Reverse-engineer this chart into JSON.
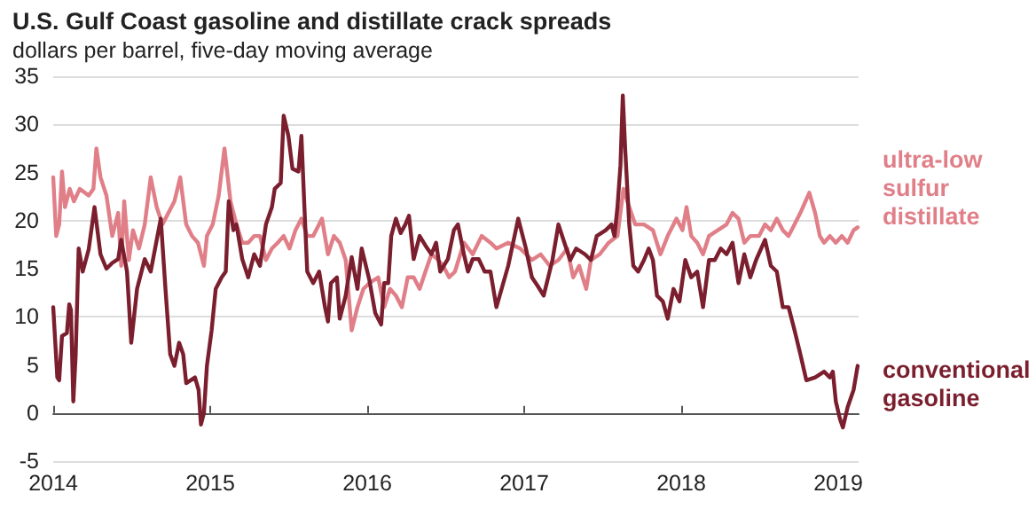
{
  "chart_data": {
    "type": "line",
    "title": "U.S. Gulf Coast gasoline and distillate crack spreads",
    "subtitle": "dollars per barrel, five-day moving average",
    "xlim": [
      2014,
      2019.13
    ],
    "xticks": [
      2014,
      2015,
      2016,
      2017,
      2018,
      2019
    ],
    "ylim": [
      -5,
      35
    ],
    "yticks": [
      -5,
      0,
      5,
      10,
      15,
      20,
      25,
      30,
      35
    ],
    "grid": "y",
    "legend": false,
    "line_style": "solid",
    "series": [
      {
        "name": "ultra-low sulfur distillate",
        "color": "#e07f88",
        "x": [
          2014.0,
          2014.019,
          2014.038,
          2014.056,
          2014.075,
          2014.105,
          2014.132,
          2014.169,
          2014.226,
          2014.256,
          2014.275,
          2014.301,
          2014.339,
          2014.376,
          2014.414,
          2014.433,
          2014.452,
          2014.482,
          2014.508,
          2014.546,
          2014.583,
          2014.621,
          2014.659,
          2014.696,
          2014.734,
          2014.772,
          2014.809,
          2014.847,
          2014.884,
          2014.922,
          2014.96,
          2014.979,
          2015.016,
          2015.054,
          2015.091,
          2015.129,
          2015.167,
          2015.204,
          2015.242,
          2015.28,
          2015.317,
          2015.355,
          2015.393,
          2015.43,
          2015.468,
          2015.505,
          2015.543,
          2015.581,
          2015.618,
          2015.656,
          2015.712,
          2015.75,
          2015.788,
          2015.825,
          2015.863,
          2015.901,
          2015.938,
          2015.976,
          2016.014,
          2016.07,
          2016.108,
          2016.145,
          2016.183,
          2016.221,
          2016.258,
          2016.296,
          2016.334,
          2016.371,
          2016.409,
          2016.446,
          2016.484,
          2016.522,
          2016.559,
          2016.616,
          2016.672,
          2016.729,
          2016.785,
          2016.823,
          2016.898,
          2016.974,
          2017.049,
          2017.105,
          2017.162,
          2017.218,
          2017.274,
          2017.312,
          2017.35,
          2017.395,
          2017.425,
          2017.481,
          2017.538,
          2017.594,
          2017.632,
          2017.669,
          2017.707,
          2017.763,
          2017.82,
          2017.868,
          2017.914,
          2017.97,
          2018.008,
          2018.034,
          2018.064,
          2018.102,
          2018.139,
          2018.177,
          2018.233,
          2018.289,
          2018.327,
          2018.365,
          2018.402,
          2018.44,
          2018.496,
          2018.534,
          2018.571,
          2018.609,
          2018.647,
          2018.684,
          2018.722,
          2018.759,
          2018.816,
          2018.853,
          2018.883,
          2018.91,
          2018.947,
          2018.985,
          2019.023,
          2019.06,
          2019.098,
          2019.124
        ],
        "values": [
          24.5,
          18.4,
          19.6,
          25.1,
          21.4,
          23.3,
          22,
          23.3,
          22.6,
          23.3,
          27.5,
          24.5,
          22.6,
          18.4,
          20.8,
          15.3,
          22,
          15.9,
          19,
          17.1,
          19.6,
          24.5,
          21.4,
          19.6,
          20.8,
          22,
          24.5,
          19.6,
          18.4,
          17.7,
          15.3,
          18.4,
          19.6,
          22.6,
          27.5,
          22,
          19.6,
          17.7,
          17.7,
          18.4,
          18.4,
          15.9,
          17.1,
          17.7,
          18.4,
          17.1,
          19,
          20.2,
          18.4,
          18.4,
          20.2,
          16.5,
          18.4,
          17.7,
          15.9,
          8.6,
          11,
          12.9,
          13.5,
          14.1,
          11,
          12.9,
          12.2,
          11,
          14.1,
          14.1,
          12.9,
          14.7,
          16.5,
          16,
          15.3,
          14.1,
          14.7,
          17.7,
          16.5,
          18.4,
          17.7,
          17.1,
          17.7,
          17.1,
          15.9,
          16.5,
          15.3,
          15.9,
          17.1,
          14.1,
          15.3,
          12.9,
          15.9,
          16.5,
          17.7,
          18.4,
          23.3,
          21.4,
          19.6,
          19.6,
          19,
          16.5,
          18.4,
          20.2,
          19,
          21.4,
          18.4,
          17.7,
          16.5,
          18.4,
          19,
          19.6,
          20.8,
          20.2,
          17.7,
          18.4,
          18.4,
          19.6,
          19,
          20.2,
          19,
          18.4,
          19.6,
          20.8,
          22.9,
          20.8,
          18.4,
          17.7,
          18.4,
          17.7,
          18.4,
          17.7,
          19,
          19.3
        ]
      },
      {
        "name": "conventional gasoline",
        "color": "#7b1f2e",
        "x": [
          2014.0,
          2014.026,
          2014.038,
          2014.056,
          2014.087,
          2014.102,
          2014.113,
          2014.128,
          2014.143,
          2014.162,
          2014.188,
          2014.226,
          2014.263,
          2014.301,
          2014.339,
          2014.376,
          2014.414,
          2014.433,
          2014.47,
          2014.497,
          2014.534,
          2014.583,
          2014.621,
          2014.685,
          2014.715,
          2014.745,
          2014.772,
          2014.802,
          2014.828,
          2014.847,
          2014.903,
          2014.926,
          2014.941,
          2014.96,
          2014.979,
          2015.009,
          2015.035,
          2015.073,
          2015.099,
          2015.118,
          2015.148,
          2015.167,
          2015.204,
          2015.242,
          2015.28,
          2015.317,
          2015.355,
          2015.393,
          2015.411,
          2015.449,
          2015.468,
          2015.498,
          2015.524,
          2015.562,
          2015.581,
          2015.6,
          2015.618,
          2015.656,
          2015.694,
          2015.731,
          2015.75,
          2015.769,
          2015.807,
          2015.825,
          2015.863,
          2015.901,
          2015.938,
          2015.965,
          2016.014,
          2016.051,
          2016.089,
          2016.108,
          2016.134,
          2016.153,
          2016.183,
          2016.213,
          2016.243,
          2016.266,
          2016.296,
          2016.334,
          2016.371,
          2016.409,
          2016.439,
          2016.465,
          2016.514,
          2016.552,
          2016.578,
          2016.616,
          2016.642,
          2016.672,
          2016.71,
          2016.748,
          2016.785,
          2016.823,
          2016.898,
          2016.962,
          2017.011,
          2017.049,
          2017.086,
          2017.124,
          2017.18,
          2017.218,
          2017.256,
          2017.293,
          2017.331,
          2017.387,
          2017.425,
          2017.462,
          2017.519,
          2017.556,
          2017.575,
          2017.594,
          2017.613,
          2017.628,
          2017.643,
          2017.669,
          2017.695,
          2017.726,
          2017.763,
          2017.793,
          2017.82,
          2017.846,
          2017.883,
          2017.914,
          2017.951,
          2017.989,
          2018.026,
          2018.064,
          2018.102,
          2018.139,
          2018.177,
          2018.214,
          2018.252,
          2018.289,
          2018.327,
          2018.365,
          2018.402,
          2018.44,
          2018.477,
          2018.534,
          2018.571,
          2018.609,
          2018.647,
          2018.684,
          2018.722,
          2018.759,
          2018.797,
          2018.853,
          2018.91,
          2018.947,
          2018.966,
          2018.985,
          2019.011,
          2019.03,
          2019.06,
          2019.098,
          2019.124
        ],
        "values": [
          11,
          3.7,
          3.4,
          8,
          8.3,
          11.3,
          10.7,
          1.2,
          6,
          17.1,
          14.7,
          17,
          21.4,
          16.5,
          15,
          15.6,
          16,
          18,
          14.7,
          7.3,
          12.9,
          16,
          14.7,
          20.2,
          12.9,
          6.1,
          4.9,
          7.3,
          6.1,
          3.1,
          3.7,
          2.4,
          -1.2,
          0,
          4.9,
          8.6,
          12.9,
          14.1,
          14.7,
          22,
          19,
          19.6,
          16,
          14.1,
          16.5,
          15.3,
          19.6,
          21.4,
          23.3,
          23.9,
          30.9,
          28.8,
          25.4,
          25.1,
          28.8,
          21.4,
          14.7,
          13.5,
          14.7,
          11,
          9.5,
          13.5,
          14.1,
          9.8,
          12.2,
          16.2,
          12.9,
          17.1,
          13.8,
          10.4,
          9.2,
          13.5,
          13.5,
          18.4,
          20.2,
          18.7,
          19.6,
          20.5,
          16,
          18.4,
          17.4,
          16.5,
          17.7,
          14.7,
          16,
          19,
          19.6,
          16.5,
          14.7,
          16,
          16,
          14.7,
          14.7,
          11,
          15.3,
          20.2,
          17.1,
          14.1,
          13.2,
          12.2,
          15.9,
          19.6,
          17.7,
          15.9,
          17.1,
          16.5,
          15.9,
          18.4,
          19,
          19.6,
          18.4,
          21.4,
          25.7,
          33,
          27.5,
          19.6,
          15.3,
          14.7,
          15.9,
          17.1,
          15.9,
          12.2,
          11.6,
          9.8,
          12.9,
          11.6,
          15.9,
          14.1,
          14.7,
          11,
          15.9,
          15.9,
          17.1,
          16.5,
          17.7,
          13.5,
          16.5,
          14.1,
          15.9,
          18,
          15.3,
          14.7,
          11,
          11,
          8.6,
          6.1,
          3.4,
          3.7,
          4.3,
          3.7,
          4.3,
          1.2,
          -0.6,
          -1.5,
          0.6,
          2.4,
          4.9
        ]
      }
    ]
  }
}
